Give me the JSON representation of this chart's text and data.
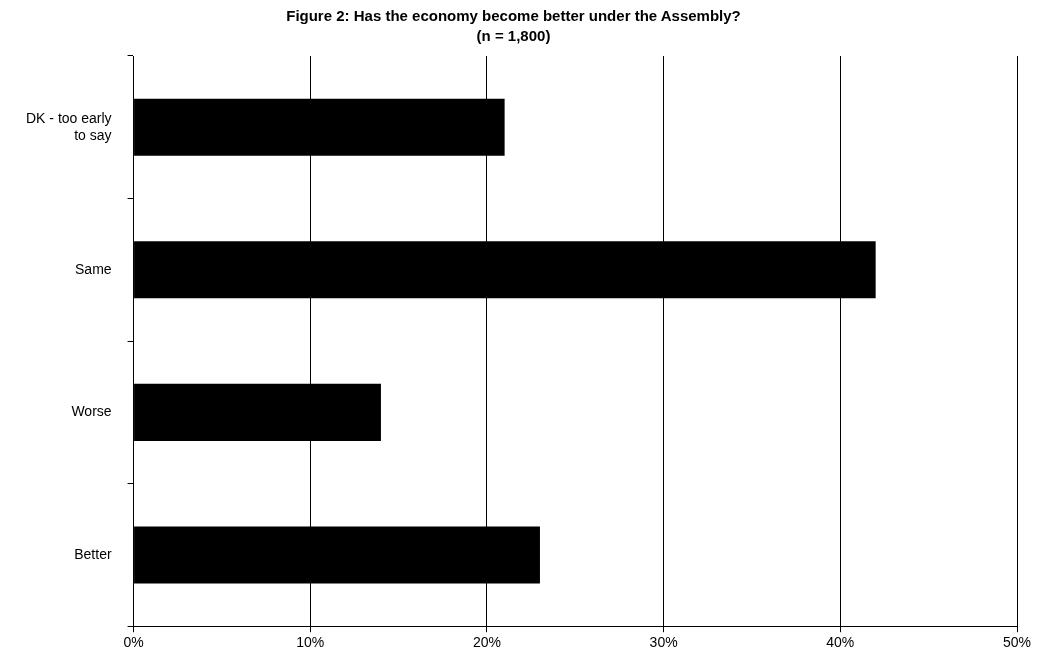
{
  "chart_data": {
    "type": "bar",
    "orientation": "horizontal",
    "title": "Figure 2: Has the economy become better under the Assembly?",
    "subtitle": "(n = 1,800)",
    "categories": [
      "DK - too early to say",
      "Same",
      "Worse",
      "Better"
    ],
    "values": [
      21,
      42,
      14,
      23
    ],
    "color": "#000000",
    "xlim": [
      0,
      50
    ],
    "xticks": [
      {
        "value": 0,
        "label": "0%"
      },
      {
        "value": 10,
        "label": "10%"
      },
      {
        "value": 20,
        "label": "20%"
      },
      {
        "value": 30,
        "label": "30%"
      },
      {
        "value": 40,
        "label": "40%"
      },
      {
        "value": 50,
        "label": "50%"
      }
    ],
    "grid": "x",
    "legend": false
  }
}
